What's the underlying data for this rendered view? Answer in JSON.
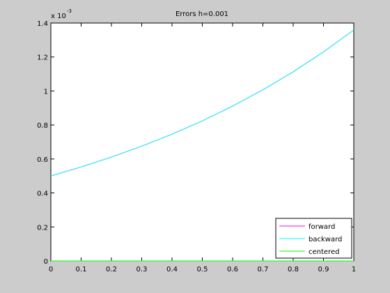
{
  "chart_data": {
    "type": "line",
    "title": "Errors h=0.001",
    "y_multiplier": "x 10",
    "y_multiplier_exponent": "-3",
    "x": [
      0,
      0.1,
      0.2,
      0.3,
      0.4,
      0.5,
      0.6,
      0.7,
      0.8,
      0.9,
      1
    ],
    "series": [
      {
        "name": "forward",
        "color": "#ff00ff",
        "values": [
          0.5,
          0.553,
          0.611,
          0.675,
          0.746,
          0.824,
          0.911,
          1.007,
          1.113,
          1.23,
          1.359
        ]
      },
      {
        "name": "backward",
        "color": "#00ffff",
        "values": [
          0.5,
          0.553,
          0.611,
          0.675,
          0.746,
          0.824,
          0.911,
          1.007,
          1.113,
          1.23,
          1.359
        ]
      },
      {
        "name": "centered",
        "color": "#00ff00",
        "values": [
          0,
          0,
          0,
          0,
          0,
          0,
          0,
          0,
          0,
          0,
          0
        ]
      }
    ],
    "xlim": [
      0,
      1
    ],
    "xticks": [
      0,
      0.1,
      0.2,
      0.3,
      0.4,
      0.5,
      0.6,
      0.7,
      0.8,
      0.9,
      1
    ],
    "ylim": [
      0,
      1.4
    ],
    "yticks": [
      0,
      0.2,
      0.4,
      0.6,
      0.8,
      1,
      1.2,
      1.4
    ],
    "legend": "lower right",
    "grid": false
  }
}
